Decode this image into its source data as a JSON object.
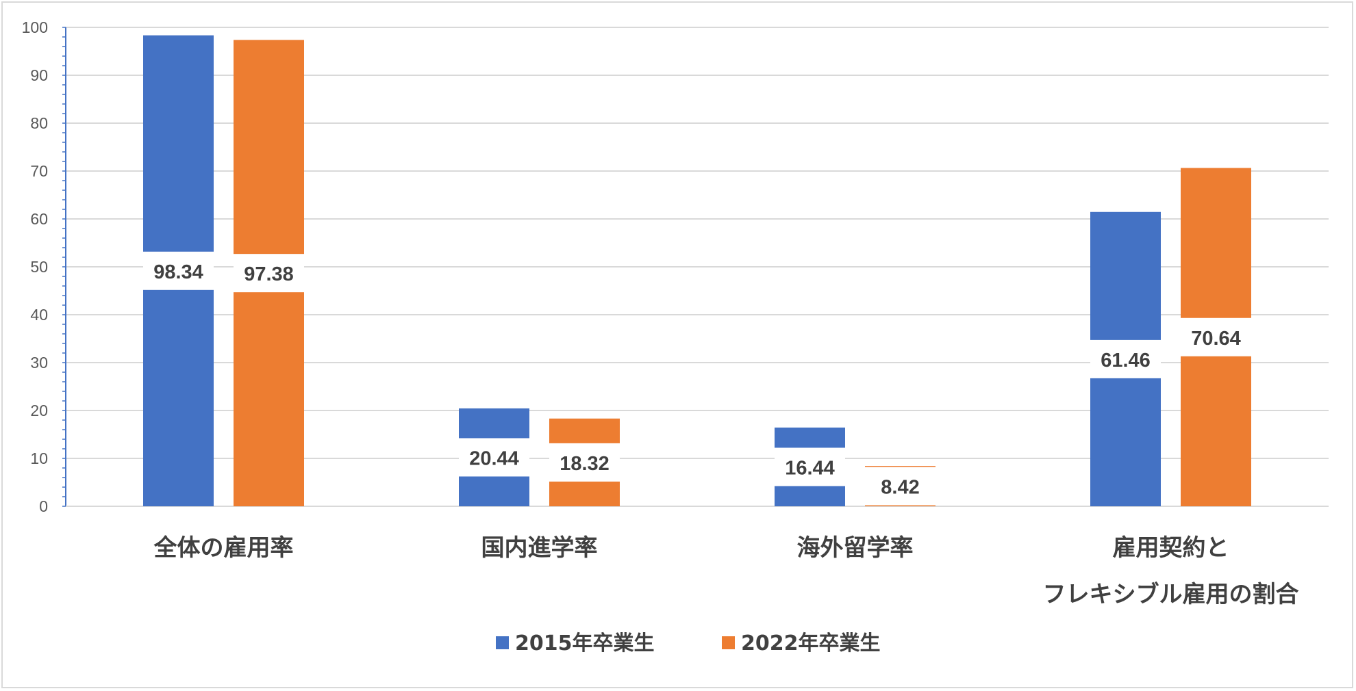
{
  "chart_data": {
    "type": "bar",
    "categories": [
      [
        "全体の雇用率"
      ],
      [
        "国内進学率"
      ],
      [
        "海外留学率"
      ],
      [
        "雇用契約と",
        "フレキシブル雇用の割合"
      ]
    ],
    "series": [
      {
        "name": "2015年卒業生",
        "color": "#4472c4",
        "values": [
          98.34,
          20.44,
          16.44,
          61.46
        ]
      },
      {
        "name": "2022年卒業生",
        "color": "#ed7d31",
        "values": [
          97.38,
          18.32,
          8.42,
          70.64
        ]
      }
    ],
    "data_labels": [
      [
        "98.34",
        "20.44",
        "16.44",
        "61.46"
      ],
      [
        "97.38",
        "18.32",
        "8.42",
        "70.64"
      ]
    ],
    "y_ticks": [
      "0",
      "10",
      "20",
      "30",
      "40",
      "50",
      "60",
      "70",
      "80",
      "90",
      "100"
    ],
    "ylim": [
      0,
      100
    ],
    "grid": true,
    "legend_position": "bottom",
    "title": "",
    "xlabel": "",
    "ylabel": ""
  }
}
